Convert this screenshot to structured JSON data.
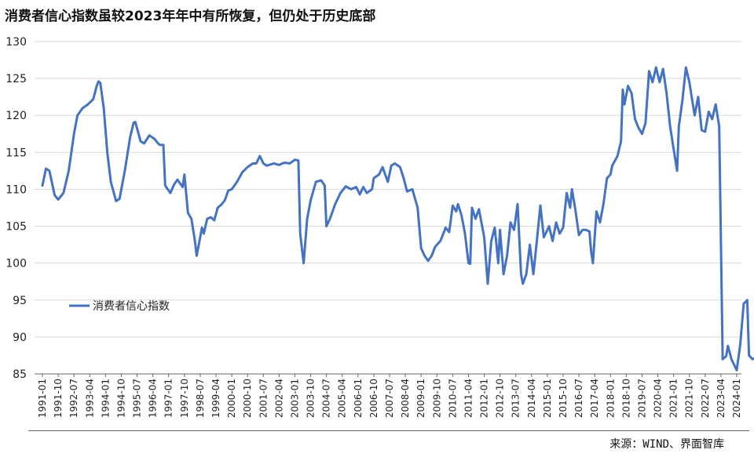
{
  "header": {
    "title": "消费者信心指数虽较2023年年中有所恢复，但仍处于历史底部"
  },
  "footer": {
    "source": "来源：WIND、界面智库"
  },
  "chart_data": {
    "type": "line",
    "title": "消费者信心指数虽较2023年年中有所恢复，但仍处于历史底部",
    "xlabel": "",
    "ylabel": "",
    "ylim": [
      85,
      130
    ],
    "yticks": [
      85,
      90,
      95,
      100,
      105,
      110,
      115,
      120,
      125,
      130
    ],
    "x_range": [
      "1991-01",
      "2024-01"
    ],
    "xticks": [
      "1991-01",
      "1991-10",
      "1992-07",
      "1993-04",
      "1994-01",
      "1994-10",
      "1995-07",
      "1996-04",
      "1997-01",
      "1997-10",
      "1998-07",
      "1999-04",
      "2000-01",
      "2000-10",
      "2001-07",
      "2002-04",
      "2003-01",
      "2003-10",
      "2004-07",
      "2005-04",
      "2006-01",
      "2006-10",
      "2007-07",
      "2008-04",
      "2009-01",
      "2009-10",
      "2010-07",
      "2011-04",
      "2012-01",
      "2012-10",
      "2013-07",
      "2014-04",
      "2015-01",
      "2015-10",
      "2016-07",
      "2017-04",
      "2018-01",
      "2018-10",
      "2019-07",
      "2020-04",
      "2021-01",
      "2021-10",
      "2022-07",
      "2023-04",
      "2024-01"
    ],
    "grid": "horizontal",
    "legend": "left-middle",
    "series": [
      {
        "name": "消费者信心指数",
        "color": "#4472C4",
        "points": [
          [
            "1991-01",
            110.5
          ],
          [
            "1991-03",
            112.8
          ],
          [
            "1991-05",
            112.5
          ],
          [
            "1991-08",
            109.2
          ],
          [
            "1991-10",
            108.6
          ],
          [
            "1992-01",
            109.5
          ],
          [
            "1992-04",
            112.5
          ],
          [
            "1992-07",
            117.5
          ],
          [
            "1992-09",
            120.0
          ],
          [
            "1992-12",
            121.0
          ],
          [
            "1993-03",
            121.5
          ],
          [
            "1993-06",
            122.2
          ],
          [
            "1993-08",
            124.0
          ],
          [
            "1993-09",
            124.6
          ],
          [
            "1993-10",
            124.4
          ],
          [
            "1993-12",
            121.0
          ],
          [
            "1994-02",
            115.0
          ],
          [
            "1994-04",
            111.0
          ],
          [
            "1994-07",
            108.4
          ],
          [
            "1994-09",
            108.7
          ],
          [
            "1994-12",
            112.5
          ],
          [
            "1995-03",
            117.0
          ],
          [
            "1995-05",
            119.0
          ],
          [
            "1995-06",
            119.1
          ],
          [
            "1995-09",
            116.5
          ],
          [
            "1995-11",
            116.2
          ],
          [
            "1996-02",
            117.3
          ],
          [
            "1996-05",
            116.8
          ],
          [
            "1996-07",
            116.2
          ],
          [
            "1996-08",
            116.0
          ],
          [
            "1996-10",
            116.0
          ],
          [
            "1996-11",
            110.5
          ],
          [
            "1997-02",
            109.5
          ],
          [
            "1997-04",
            110.6
          ],
          [
            "1997-06",
            111.3
          ],
          [
            "1997-09",
            110.3
          ],
          [
            "1997-10",
            112.0
          ],
          [
            "1997-12",
            106.8
          ],
          [
            "1998-02",
            106.0
          ],
          [
            "1998-04",
            103.0
          ],
          [
            "1998-05",
            101.0
          ],
          [
            "1998-07",
            103.5
          ],
          [
            "1998-08",
            104.8
          ],
          [
            "1998-09",
            104.0
          ],
          [
            "1998-11",
            106.0
          ],
          [
            "1999-01",
            106.2
          ],
          [
            "1999-03",
            105.8
          ],
          [
            "1999-05",
            107.5
          ],
          [
            "1999-07",
            107.9
          ],
          [
            "1999-09",
            108.5
          ],
          [
            "1999-11",
            109.8
          ],
          [
            "2000-01",
            110.0
          ],
          [
            "2000-04",
            111.0
          ],
          [
            "2000-07",
            112.3
          ],
          [
            "2000-10",
            113.0
          ],
          [
            "2001-01",
            113.5
          ],
          [
            "2001-03",
            113.5
          ],
          [
            "2001-05",
            114.5
          ],
          [
            "2001-07",
            113.5
          ],
          [
            "2001-09",
            113.2
          ],
          [
            "2002-01",
            113.5
          ],
          [
            "2002-04",
            113.3
          ],
          [
            "2002-07",
            113.6
          ],
          [
            "2002-10",
            113.5
          ],
          [
            "2003-01",
            114.0
          ],
          [
            "2003-03",
            113.9
          ],
          [
            "2003-04",
            104.0
          ],
          [
            "2003-05",
            102.0
          ],
          [
            "2003-06",
            100.0
          ],
          [
            "2003-08",
            106.0
          ],
          [
            "2003-10",
            108.5
          ],
          [
            "2004-01",
            111.0
          ],
          [
            "2004-04",
            111.2
          ],
          [
            "2004-06",
            110.5
          ],
          [
            "2004-07",
            105.0
          ],
          [
            "2004-09",
            106.0
          ],
          [
            "2004-12",
            108.0
          ],
          [
            "2005-03",
            109.5
          ],
          [
            "2005-06",
            110.4
          ],
          [
            "2005-09",
            110.0
          ],
          [
            "2005-12",
            110.3
          ],
          [
            "2006-02",
            109.3
          ],
          [
            "2006-04",
            110.3
          ],
          [
            "2006-06",
            109.5
          ],
          [
            "2006-09",
            110.0
          ],
          [
            "2006-10",
            111.5
          ],
          [
            "2007-01",
            112.0
          ],
          [
            "2007-03",
            113.0
          ],
          [
            "2007-06",
            111.0
          ],
          [
            "2007-08",
            113.2
          ],
          [
            "2007-10",
            113.5
          ],
          [
            "2008-01",
            113.0
          ],
          [
            "2008-03",
            111.5
          ],
          [
            "2008-05",
            109.7
          ],
          [
            "2008-08",
            110.0
          ],
          [
            "2008-11",
            107.5
          ],
          [
            "2009-01",
            102.0
          ],
          [
            "2009-03",
            101.0
          ],
          [
            "2009-05",
            100.3
          ],
          [
            "2009-07",
            101.0
          ],
          [
            "2009-09",
            102.2
          ],
          [
            "2009-12",
            103.0
          ],
          [
            "2010-03",
            104.8
          ],
          [
            "2010-05",
            104.2
          ],
          [
            "2010-07",
            107.8
          ],
          [
            "2010-09",
            107.0
          ],
          [
            "2010-10",
            108.0
          ],
          [
            "2010-12",
            106.5
          ],
          [
            "2011-02",
            104.0
          ],
          [
            "2011-04",
            100.0
          ],
          [
            "2011-05",
            99.9
          ],
          [
            "2011-06",
            107.5
          ],
          [
            "2011-08",
            106.0
          ],
          [
            "2011-10",
            107.3
          ],
          [
            "2012-01",
            103.5
          ],
          [
            "2012-03",
            97.2
          ],
          [
            "2012-05",
            103.0
          ],
          [
            "2012-07",
            104.8
          ],
          [
            "2012-09",
            100.0
          ],
          [
            "2012-10",
            104.5
          ],
          [
            "2012-12",
            98.5
          ],
          [
            "2013-02",
            101.0
          ],
          [
            "2013-04",
            105.5
          ],
          [
            "2013-06",
            104.5
          ],
          [
            "2013-08",
            108.0
          ],
          [
            "2013-10",
            98.5
          ],
          [
            "2013-11",
            97.2
          ],
          [
            "2014-01",
            98.5
          ],
          [
            "2014-03",
            102.5
          ],
          [
            "2014-05",
            98.5
          ],
          [
            "2014-07",
            103.0
          ],
          [
            "2014-09",
            107.8
          ],
          [
            "2014-11",
            103.5
          ],
          [
            "2015-02",
            105.0
          ],
          [
            "2015-04",
            103.0
          ],
          [
            "2015-06",
            105.5
          ],
          [
            "2015-08",
            104.0
          ],
          [
            "2015-10",
            104.8
          ],
          [
            "2015-12",
            109.5
          ],
          [
            "2016-02",
            107.5
          ],
          [
            "2016-03",
            110.0
          ],
          [
            "2016-05",
            107.2
          ],
          [
            "2016-07",
            103.8
          ],
          [
            "2016-09",
            104.5
          ],
          [
            "2016-11",
            104.5
          ],
          [
            "2017-01",
            104.3
          ],
          [
            "2017-02",
            101.5
          ],
          [
            "2017-03",
            100.0
          ],
          [
            "2017-05",
            107.0
          ],
          [
            "2017-07",
            105.5
          ],
          [
            "2017-09",
            108.0
          ],
          [
            "2017-11",
            111.5
          ],
          [
            "2018-01",
            112.0
          ],
          [
            "2018-02",
            113.2
          ],
          [
            "2018-05",
            114.5
          ],
          [
            "2018-07",
            116.5
          ],
          [
            "2018-08",
            123.5
          ],
          [
            "2018-09",
            121.5
          ],
          [
            "2018-11",
            124.0
          ],
          [
            "2019-01",
            123.0
          ],
          [
            "2019-03",
            119.5
          ],
          [
            "2019-05",
            118.3
          ],
          [
            "2019-07",
            117.5
          ],
          [
            "2019-09",
            119.0
          ],
          [
            "2019-11",
            126.0
          ],
          [
            "2020-01",
            124.5
          ],
          [
            "2020-03",
            126.5
          ],
          [
            "2020-05",
            124.5
          ],
          [
            "2020-07",
            126.3
          ],
          [
            "2020-09",
            123.0
          ],
          [
            "2020-11",
            118.5
          ],
          [
            "2021-01",
            115.5
          ],
          [
            "2021-03",
            112.5
          ],
          [
            "2021-04",
            118.5
          ],
          [
            "2021-06",
            122.0
          ],
          [
            "2021-08",
            126.5
          ],
          [
            "2021-10",
            124.5
          ],
          [
            "2022-01",
            120.0
          ],
          [
            "2022-03",
            122.5
          ],
          [
            "2022-05",
            118.0
          ],
          [
            "2022-07",
            117.8
          ],
          [
            "2022-09",
            120.5
          ],
          [
            "2022-11",
            119.5
          ],
          [
            "2023-01",
            121.5
          ],
          [
            "2023-03",
            118.5
          ],
          [
            "2023-05",
            87.0
          ],
          [
            "2023-07",
            87.4
          ],
          [
            "2023-08",
            88.8
          ],
          [
            "2023-10",
            87.0
          ],
          [
            "2023-11",
            86.5
          ],
          [
            "2024-01",
            85.5
          ],
          [
            "2024-03",
            89.0
          ],
          [
            "2024-05",
            94.5
          ],
          [
            "2024-07",
            95.0
          ],
          [
            "2024-08",
            87.5
          ],
          [
            "2024-10",
            87.0
          ],
          [
            "2024-12",
            87.2
          ],
          [
            "2025-01",
            88.0
          ],
          [
            "2025-03",
            87.3
          ],
          [
            "2025-05",
            88.9
          ]
        ]
      }
    ]
  }
}
